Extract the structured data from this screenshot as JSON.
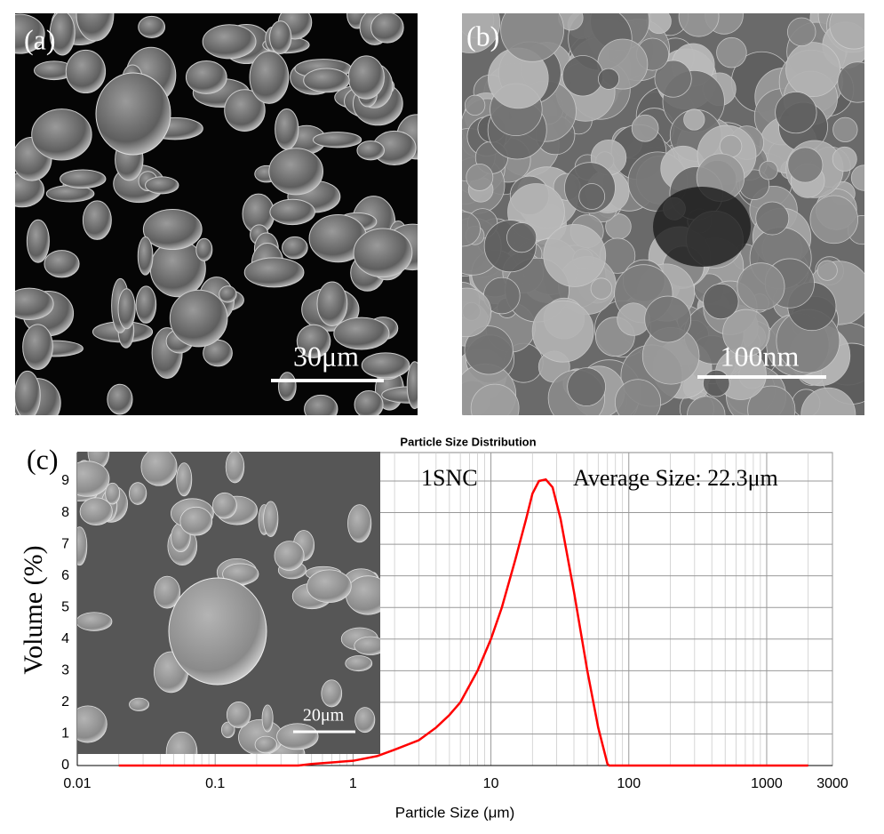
{
  "panels": [
    {
      "label": "(a)",
      "scale_bar": "30μm"
    },
    {
      "label": "(b)",
      "scale_bar": "100nm"
    },
    {
      "label": "(c)",
      "scale_bar": "20μm"
    }
  ],
  "chart_data": {
    "type": "line",
    "title": "Particle Size Distribution",
    "x_label": "Particle Size (μm)",
    "y_label": "Volume (%)",
    "annotations": [
      "1SNC",
      "Average Size: 22.3μm"
    ],
    "x": [
      0.02,
      0.4,
      0.5,
      1,
      1.5,
      2,
      3,
      4,
      5,
      6,
      8,
      10,
      12,
      15,
      18,
      20,
      22.3,
      25,
      28,
      32,
      40,
      50,
      60,
      70,
      72,
      100,
      1000,
      2000
    ],
    "series": [
      {
        "name": "1SNC",
        "color": "#ff0000",
        "values": [
          0,
          0,
          0.05,
          0.15,
          0.3,
          0.5,
          0.8,
          1.2,
          1.6,
          2.0,
          3.0,
          4.0,
          5.0,
          6.5,
          7.8,
          8.6,
          9.0,
          9.05,
          8.8,
          7.8,
          5.5,
          3.0,
          1.2,
          0.05,
          0,
          0,
          0,
          0
        ]
      }
    ],
    "xlim": [
      0.01,
      3000
    ],
    "xticks": [
      0.01,
      0.1,
      1,
      10,
      100,
      1000,
      3000
    ],
    "xscale": "log",
    "ylim": [
      0,
      9.9
    ],
    "yticks": [
      0,
      1,
      2,
      3,
      4,
      5,
      6,
      7,
      8,
      9
    ],
    "grid": true
  }
}
